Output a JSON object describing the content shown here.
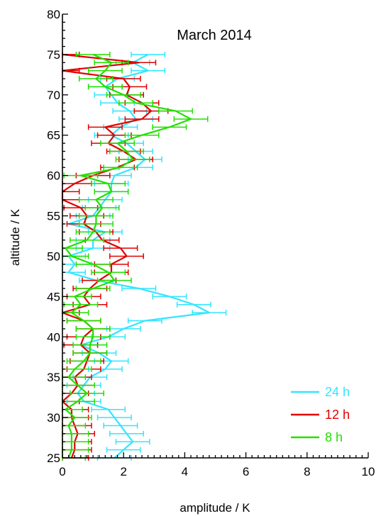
{
  "chart_data": {
    "type": "line",
    "title": "March 2014",
    "xlabel": "amplitude / K",
    "ylabel": "altitude / K",
    "xlim": [
      0,
      10
    ],
    "ylim": [
      25,
      80
    ],
    "x_ticks": [
      "0",
      "2",
      "4",
      "6",
      "8",
      "10"
    ],
    "y_ticks": [
      "25",
      "30",
      "35",
      "40",
      "45",
      "50",
      "55",
      "60",
      "65",
      "70",
      "75",
      "80"
    ],
    "grid": false,
    "legend_position": "bottom-right",
    "series": [
      {
        "name": "24 h",
        "color": "#33e5ff",
        "error": 0.55,
        "altitude": [
          25,
          26,
          27,
          28,
          29,
          30,
          31,
          32,
          33,
          34,
          35,
          36,
          37,
          38,
          39,
          40,
          41,
          42,
          43,
          44,
          45,
          46,
          47,
          48,
          49,
          50,
          51,
          52,
          53,
          54,
          55,
          56,
          57,
          58,
          59,
          60,
          61,
          62,
          63,
          64,
          65,
          66,
          67,
          68,
          69,
          70,
          71,
          72,
          73,
          74,
          75
        ],
        "amplitude": [
          1.7,
          2.0,
          2.3,
          2.1,
          1.9,
          1.7,
          1.5,
          0.7,
          0.5,
          0.7,
          0.9,
          1.4,
          1.6,
          1.2,
          0.6,
          1.5,
          2.0,
          2.7,
          4.8,
          4.3,
          3.5,
          2.5,
          1.1,
          0.2,
          0.4,
          0.2,
          1.0,
          1.0,
          1.4,
          0.2,
          1.0,
          1.2,
          1.4,
          1.6,
          1.6,
          1.7,
          2.4,
          2.7,
          2.4,
          2.1,
          1.6,
          1.9,
          2.4,
          2.2,
          1.8,
          1.6,
          1.4,
          1.8,
          2.8,
          2.3,
          2.8
        ]
      },
      {
        "name": "12 h",
        "color": "#e00000",
        "error": 0.55,
        "altitude": [
          25,
          26,
          27,
          28,
          29,
          30,
          31,
          32,
          33,
          34,
          35,
          36,
          37,
          38,
          39,
          40,
          41,
          42,
          43,
          44,
          45,
          46,
          47,
          48,
          49,
          50,
          51,
          52,
          53,
          54,
          55,
          56,
          57,
          58,
          59,
          60,
          61,
          62,
          63,
          64,
          65,
          66,
          67,
          68,
          69,
          70,
          71,
          72,
          73,
          74,
          75
        ],
        "amplitude": [
          0.3,
          0.4,
          0.4,
          0.5,
          0.4,
          0.3,
          0.3,
          0.0,
          0.3,
          0.5,
          0.4,
          0.7,
          0.8,
          0.9,
          0.6,
          0.7,
          1.0,
          0.7,
          0.0,
          0.9,
          0.7,
          0.9,
          1.2,
          1.6,
          1.6,
          2.1,
          1.9,
          1.3,
          1.1,
          0.7,
          0.8,
          0.6,
          0.0,
          0.0,
          0.4,
          1.0,
          1.8,
          2.4,
          2.0,
          1.5,
          1.7,
          1.4,
          2.6,
          2.9,
          2.6,
          2.1,
          2.2,
          2.0,
          0.0,
          2.5,
          0.0
        ]
      },
      {
        "name": "8 h",
        "color": "#22e000",
        "error": 0.55,
        "altitude": [
          25,
          26,
          27,
          28,
          29,
          30,
          31,
          32,
          33,
          34,
          35,
          36,
          37,
          38,
          39,
          40,
          41,
          42,
          43,
          44,
          45,
          46,
          47,
          48,
          49,
          50,
          51,
          52,
          53,
          54,
          55,
          56,
          57,
          58,
          59,
          60,
          61,
          62,
          63,
          64,
          65,
          66,
          67,
          68,
          69,
          70,
          71,
          72,
          73,
          74,
          75
        ],
        "amplitude": [
          0.2,
          0.3,
          0.3,
          0.3,
          0.2,
          0.4,
          0.1,
          0.5,
          0.8,
          0.5,
          0.2,
          0.4,
          0.7,
          0.9,
          0.9,
          1.0,
          1.0,
          0.7,
          0.3,
          0.6,
          0.4,
          1.0,
          1.7,
          1.5,
          1.0,
          0.3,
          0.1,
          0.8,
          1.0,
          1.1,
          1.1,
          1.3,
          1.1,
          1.6,
          1.5,
          0.6,
          1.9,
          2.3,
          2.1,
          1.8,
          2.6,
          3.5,
          4.2,
          3.7,
          2.4,
          2.0,
          1.4,
          1.1,
          1.4,
          1.6,
          1.0
        ]
      }
    ]
  }
}
